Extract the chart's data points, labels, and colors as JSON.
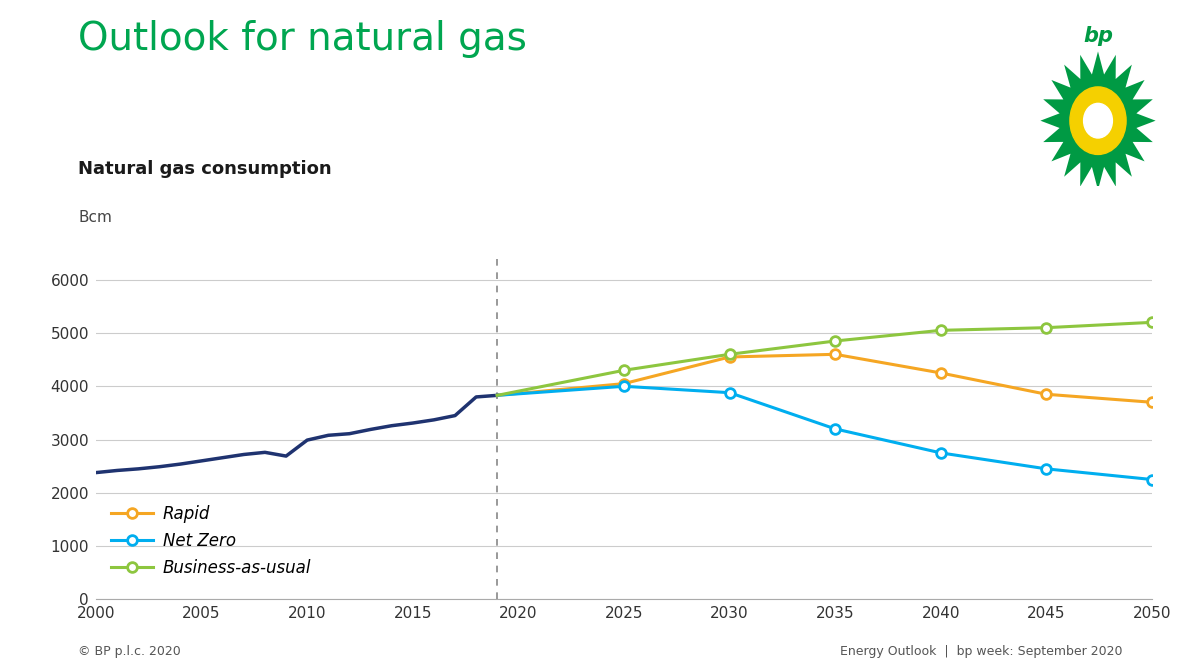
{
  "title": "Outlook for natural gas",
  "subtitle": "Natural gas consumption",
  "ylabel": "Bcm",
  "title_color": "#00a650",
  "subtitle_color": "#1a1a1a",
  "background_color": "#ffffff",
  "ylim": [
    0,
    6500
  ],
  "yticks": [
    0,
    1000,
    2000,
    3000,
    4000,
    5000,
    6000
  ],
  "xlim": [
    2000,
    2050
  ],
  "xticks": [
    2000,
    2005,
    2010,
    2015,
    2020,
    2025,
    2030,
    2035,
    2040,
    2045,
    2050
  ],
  "vline_x": 2019,
  "history_color": "#1f3370",
  "rapid_color": "#f5a623",
  "netzero_color": "#00aeef",
  "bau_color": "#8dc63f",
  "history_years": [
    2000,
    2001,
    2002,
    2003,
    2004,
    2005,
    2006,
    2007,
    2008,
    2009,
    2010,
    2011,
    2012,
    2013,
    2014,
    2015,
    2016,
    2017,
    2018,
    2019
  ],
  "history_values": [
    2380,
    2420,
    2450,
    2490,
    2540,
    2600,
    2660,
    2720,
    2760,
    2690,
    2990,
    3080,
    3110,
    3190,
    3260,
    3310,
    3370,
    3450,
    3800,
    3830
  ],
  "rapid_years": [
    2019,
    2025,
    2030,
    2035,
    2040,
    2045,
    2050
  ],
  "rapid_values": [
    3830,
    4050,
    4550,
    4600,
    4250,
    3850,
    3700
  ],
  "netzero_years": [
    2019,
    2025,
    2030,
    2035,
    2040,
    2045,
    2050
  ],
  "netzero_values": [
    3830,
    4000,
    3880,
    3200,
    2750,
    2450,
    2250
  ],
  "bau_years": [
    2019,
    2025,
    2030,
    2035,
    2040,
    2045,
    2050
  ],
  "bau_values": [
    3830,
    4300,
    4600,
    4850,
    5050,
    5100,
    5200
  ],
  "legend_labels": [
    "Rapid",
    "Net Zero",
    "Business-as-usual"
  ],
  "legend_colors": [
    "#f5a623",
    "#00aeef",
    "#8dc63f"
  ],
  "footer_left": "© BP p.l.c. 2020",
  "footer_right": "Energy Outlook  |  bp week: September 2020"
}
